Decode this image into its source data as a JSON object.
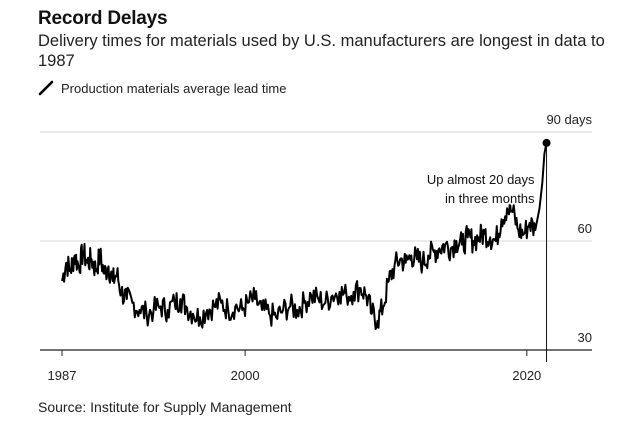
{
  "header": {
    "title": "Record Delays",
    "subtitle": "Delivery times for materials used by U.S. manufacturers are longest in data to 1987"
  },
  "legend": {
    "label": "Production materials average lead time",
    "icon": "diagonal-line-icon"
  },
  "footer": {
    "source": "Source: Institute for Supply Management"
  },
  "chart_data": {
    "type": "line",
    "title": "Record Delays",
    "series_name": "Production materials average lead time",
    "unit": "days",
    "x_range": [
      1987,
      2022
    ],
    "y_range": [
      30,
      90
    ],
    "x_ticks": [
      {
        "value": 1987,
        "label": "1987"
      },
      {
        "value": 2000,
        "label": "2000"
      },
      {
        "value": 2020,
        "label": "2020"
      }
    ],
    "y_ticks": [
      {
        "value": 90,
        "label": "90 days"
      },
      {
        "value": 60,
        "label": "60"
      },
      {
        "value": 30,
        "label": "30"
      }
    ],
    "points": [
      [
        1987.0,
        49
      ],
      [
        1987.3,
        54
      ],
      [
        1987.6,
        52
      ],
      [
        1987.9,
        56
      ],
      [
        1988.2,
        53
      ],
      [
        1988.5,
        57
      ],
      [
        1988.8,
        54
      ],
      [
        1989.1,
        55
      ],
      [
        1989.4,
        52
      ],
      [
        1989.7,
        56
      ],
      [
        1990.0,
        51
      ],
      [
        1990.3,
        53
      ],
      [
        1990.6,
        49
      ],
      [
        1990.9,
        51
      ],
      [
        1991.2,
        46
      ],
      [
        1991.6,
        44
      ],
      [
        1992.0,
        43
      ],
      [
        1992.5,
        41
      ],
      [
        1993.0,
        40
      ],
      [
        1993.5,
        41
      ],
      [
        1994.0,
        42
      ],
      [
        1994.5,
        41
      ],
      [
        1995.0,
        43
      ],
      [
        1995.4,
        44
      ],
      [
        1995.8,
        42
      ],
      [
        1996.3,
        40
      ],
      [
        1996.8,
        39
      ],
      [
        1997.3,
        41
      ],
      [
        1997.8,
        42
      ],
      [
        1998.3,
        43
      ],
      [
        1998.8,
        41
      ],
      [
        1999.3,
        42
      ],
      [
        1999.8,
        41
      ],
      [
        2000.2,
        43
      ],
      [
        2000.7,
        44
      ],
      [
        2001.2,
        41
      ],
      [
        2001.7,
        40
      ],
      [
        2002.2,
        39
      ],
      [
        2002.7,
        41
      ],
      [
        2003.2,
        42
      ],
      [
        2003.7,
        41
      ],
      [
        2004.2,
        43
      ],
      [
        2004.7,
        45
      ],
      [
        2005.2,
        44
      ],
      [
        2005.7,
        43
      ],
      [
        2006.2,
        45
      ],
      [
        2006.7,
        46
      ],
      [
        2007.2,
        45
      ],
      [
        2007.7,
        46
      ],
      [
        2008.2,
        47
      ],
      [
        2008.6,
        45
      ],
      [
        2009.0,
        40
      ],
      [
        2009.4,
        38
      ],
      [
        2009.8,
        42
      ],
      [
        2010.2,
        49
      ],
      [
        2010.6,
        53
      ],
      [
        2011.0,
        55
      ],
      [
        2011.4,
        54
      ],
      [
        2011.8,
        56
      ],
      [
        2012.2,
        55
      ],
      [
        2012.6,
        54
      ],
      [
        2013.0,
        56
      ],
      [
        2013.4,
        57
      ],
      [
        2013.8,
        58
      ],
      [
        2014.2,
        59
      ],
      [
        2014.6,
        58
      ],
      [
        2015.0,
        60
      ],
      [
        2015.4,
        59
      ],
      [
        2015.8,
        61
      ],
      [
        2016.2,
        60
      ],
      [
        2016.6,
        61
      ],
      [
        2017.0,
        62
      ],
      [
        2017.4,
        61
      ],
      [
        2017.8,
        60
      ],
      [
        2018.2,
        66
      ],
      [
        2018.6,
        69
      ],
      [
        2019.0,
        68
      ],
      [
        2019.4,
        63
      ],
      [
        2019.8,
        62
      ],
      [
        2020.2,
        65
      ],
      [
        2020.6,
        63
      ],
      [
        2020.9,
        69
      ],
      [
        2021.1,
        76
      ],
      [
        2021.25,
        84
      ],
      [
        2021.4,
        87
      ]
    ],
    "last_point": {
      "year": 2021.4,
      "value": 87
    },
    "annotation": {
      "lines": [
        "Up almost 20 days",
        "in three months"
      ]
    }
  }
}
